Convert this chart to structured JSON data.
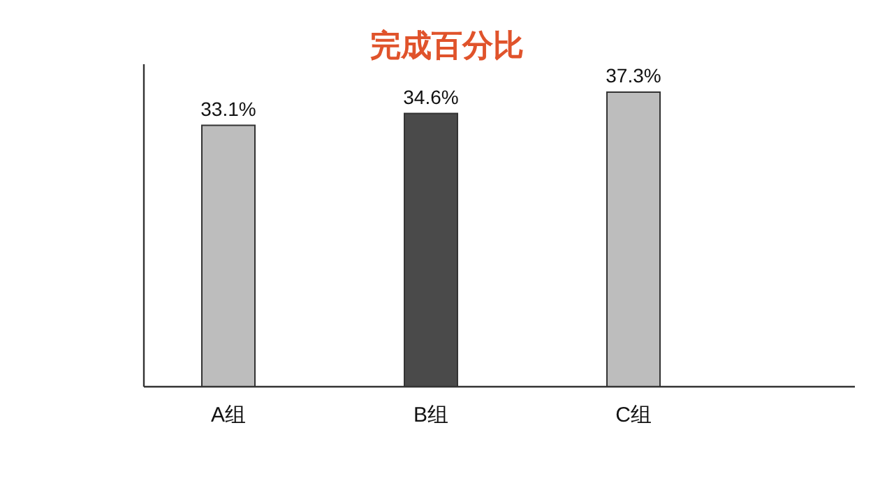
{
  "chart_data": {
    "type": "bar",
    "title": "完成百分比",
    "categories": [
      "A组",
      "B组",
      "C组"
    ],
    "values": [
      33.1,
      34.6,
      37.3
    ],
    "value_labels": [
      "33.1%",
      "34.6%",
      "37.3%"
    ],
    "colors": [
      "#bdbdbd",
      "#4a4a4a",
      "#bdbdbd"
    ]
  }
}
